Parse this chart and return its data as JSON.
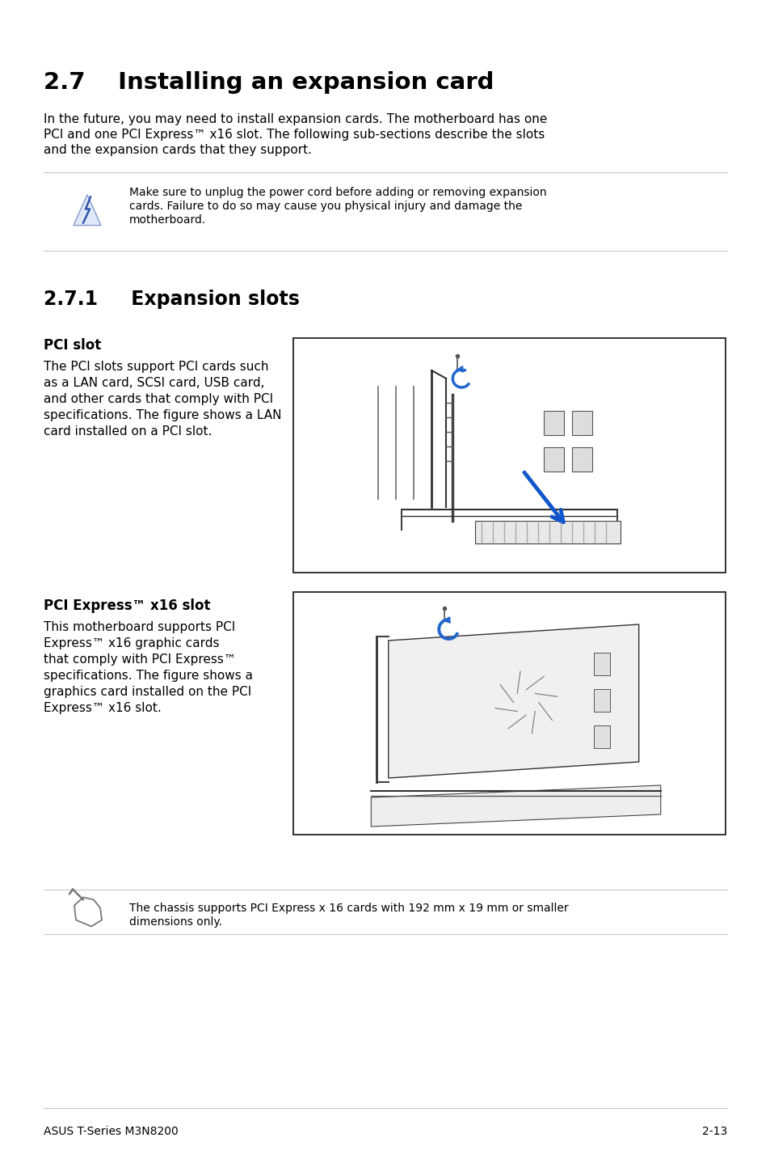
{
  "bg_color": "#ffffff",
  "title": "2.7    Installing an expansion card",
  "title_fontsize": 21,
  "body_text_1_line1": "In the future, you may need to install expansion cards. The motherboard has one",
  "body_text_1_line2": "PCI and one PCI Express™ x16 slot. The following sub-sections describe the slots",
  "body_text_1_line3": "and the expansion cards that they support.",
  "warning_text_line1": "Make sure to unplug the power cord before adding or removing expansion",
  "warning_text_line2": "cards. Failure to do so may cause you physical injury and damage the",
  "warning_text_line3": "motherboard.",
  "section_271_title": "2.7.1     Expansion slots",
  "section_271_fontsize": 17,
  "pci_slot_title": "PCI slot",
  "pci_slot_text_line1": "The PCI slots support PCI cards such",
  "pci_slot_text_line2": "as a LAN card, SCSI card, USB card,",
  "pci_slot_text_line3": "and other cards that comply with PCI",
  "pci_slot_text_line4": "specifications. The figure shows a LAN",
  "pci_slot_text_line5": "card installed on a PCI slot.",
  "pci_express_title": "PCI Express™ x16 slot",
  "pci_express_text_line1": "This motherboard supports PCI",
  "pci_express_text_line2": "Express™ x16 graphic cards",
  "pci_express_text_line3": "that comply with PCI Express™",
  "pci_express_text_line4": "specifications. The figure shows a",
  "pci_express_text_line5": "graphics card installed on the PCI",
  "pci_express_text_line6": "Express™ x16 slot.",
  "note_text_line1": "The chassis supports PCI Express x 16 cards with 192 mm x 19 mm or smaller",
  "note_text_line2": "dimensions only.",
  "footer_left": "ASUS T-Series M3N8200",
  "footer_right": "2-13",
  "line_color": "#c8c8c8",
  "text_color": "#000000",
  "body_fontsize": 11,
  "small_fontsize": 10,
  "footer_fontsize": 10
}
